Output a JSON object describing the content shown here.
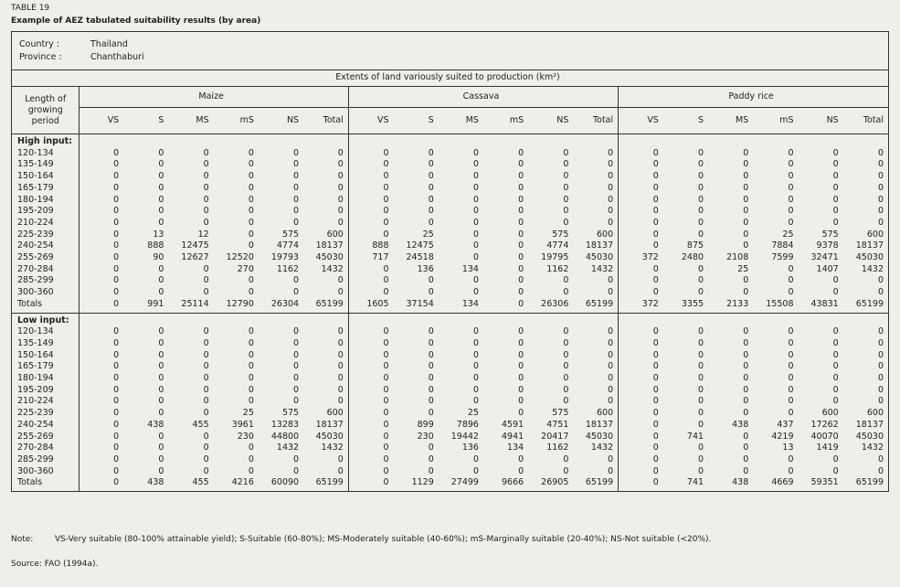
{
  "header": {
    "table_no": "TABLE 19",
    "title": "Example of AEZ tabulated suitability results (by area)"
  },
  "location": {
    "country_label": "Country :",
    "country": "Thailand",
    "province_label": "Province :",
    "province": "Chanthaburi"
  },
  "table": {
    "caption": "Extents of land variously suited to production (km²)",
    "period_header": "Length of growing period",
    "crops": [
      "Maize",
      "Cassava",
      "Paddy rice"
    ],
    "columns": [
      "VS",
      "S",
      "MS",
      "mS",
      "NS",
      "Total"
    ],
    "sections": [
      {
        "title": "High input:",
        "rows": [
          {
            "period": "120-134",
            "values": [
              0,
              0,
              0,
              0,
              0,
              0,
              0,
              0,
              0,
              0,
              0,
              0,
              0,
              0,
              0,
              0,
              0,
              0
            ]
          },
          {
            "period": "135-149",
            "values": [
              0,
              0,
              0,
              0,
              0,
              0,
              0,
              0,
              0,
              0,
              0,
              0,
              0,
              0,
              0,
              0,
              0,
              0
            ]
          },
          {
            "period": "150-164",
            "values": [
              0,
              0,
              0,
              0,
              0,
              0,
              0,
              0,
              0,
              0,
              0,
              0,
              0,
              0,
              0,
              0,
              0,
              0
            ]
          },
          {
            "period": "165-179",
            "values": [
              0,
              0,
              0,
              0,
              0,
              0,
              0,
              0,
              0,
              0,
              0,
              0,
              0,
              0,
              0,
              0,
              0,
              0
            ]
          },
          {
            "period": "180-194",
            "values": [
              0,
              0,
              0,
              0,
              0,
              0,
              0,
              0,
              0,
              0,
              0,
              0,
              0,
              0,
              0,
              0,
              0,
              0
            ]
          },
          {
            "period": "195-209",
            "values": [
              0,
              0,
              0,
              0,
              0,
              0,
              0,
              0,
              0,
              0,
              0,
              0,
              0,
              0,
              0,
              0,
              0,
              0
            ]
          },
          {
            "period": "210-224",
            "values": [
              0,
              0,
              0,
              0,
              0,
              0,
              0,
              0,
              0,
              0,
              0,
              0,
              0,
              0,
              0,
              0,
              0,
              0
            ]
          },
          {
            "period": "225-239",
            "values": [
              0,
              13,
              12,
              0,
              575,
              600,
              0,
              25,
              0,
              0,
              575,
              600,
              0,
              0,
              0,
              25,
              575,
              600
            ]
          },
          {
            "period": "240-254",
            "values": [
              0,
              888,
              12475,
              0,
              4774,
              18137,
              888,
              12475,
              0,
              0,
              4774,
              18137,
              0,
              875,
              0,
              7884,
              9378,
              18137
            ]
          },
          {
            "period": "255-269",
            "values": [
              0,
              90,
              12627,
              12520,
              19793,
              45030,
              717,
              24518,
              0,
              0,
              19795,
              45030,
              372,
              2480,
              2108,
              7599,
              32471,
              45030
            ]
          },
          {
            "period": "270-284",
            "values": [
              0,
              0,
              0,
              270,
              1162,
              1432,
              0,
              136,
              134,
              0,
              1162,
              1432,
              0,
              0,
              25,
              0,
              1407,
              1432
            ]
          },
          {
            "period": "285-299",
            "values": [
              0,
              0,
              0,
              0,
              0,
              0,
              0,
              0,
              0,
              0,
              0,
              0,
              0,
              0,
              0,
              0,
              0,
              0
            ]
          },
          {
            "period": "300-360",
            "values": [
              0,
              0,
              0,
              0,
              0,
              0,
              0,
              0,
              0,
              0,
              0,
              0,
              0,
              0,
              0,
              0,
              0,
              0
            ]
          }
        ],
        "totals": {
          "label": "Totals",
          "values": [
            0,
            991,
            25114,
            12790,
            26304,
            65199,
            1605,
            37154,
            134,
            0,
            26306,
            65199,
            372,
            3355,
            2133,
            15508,
            43831,
            65199
          ]
        }
      },
      {
        "title": "Low input:",
        "rows": [
          {
            "period": "120-134",
            "values": [
              0,
              0,
              0,
              0,
              0,
              0,
              0,
              0,
              0,
              0,
              0,
              0,
              0,
              0,
              0,
              0,
              0,
              0
            ]
          },
          {
            "period": "135-149",
            "values": [
              0,
              0,
              0,
              0,
              0,
              0,
              0,
              0,
              0,
              0,
              0,
              0,
              0,
              0,
              0,
              0,
              0,
              0
            ]
          },
          {
            "period": "150-164",
            "values": [
              0,
              0,
              0,
              0,
              0,
              0,
              0,
              0,
              0,
              0,
              0,
              0,
              0,
              0,
              0,
              0,
              0,
              0
            ]
          },
          {
            "period": "165-179",
            "values": [
              0,
              0,
              0,
              0,
              0,
              0,
              0,
              0,
              0,
              0,
              0,
              0,
              0,
              0,
              0,
              0,
              0,
              0
            ]
          },
          {
            "period": "180-194",
            "values": [
              0,
              0,
              0,
              0,
              0,
              0,
              0,
              0,
              0,
              0,
              0,
              0,
              0,
              0,
              0,
              0,
              0,
              0
            ]
          },
          {
            "period": "195-209",
            "values": [
              0,
              0,
              0,
              0,
              0,
              0,
              0,
              0,
              0,
              0,
              0,
              0,
              0,
              0,
              0,
              0,
              0,
              0
            ]
          },
          {
            "period": "210-224",
            "values": [
              0,
              0,
              0,
              0,
              0,
              0,
              0,
              0,
              0,
              0,
              0,
              0,
              0,
              0,
              0,
              0,
              0,
              0
            ]
          },
          {
            "period": "225-239",
            "values": [
              0,
              0,
              0,
              25,
              575,
              600,
              0,
              0,
              25,
              0,
              575,
              600,
              0,
              0,
              0,
              0,
              600,
              600
            ]
          },
          {
            "period": "240-254",
            "values": [
              0,
              438,
              455,
              3961,
              13283,
              18137,
              0,
              899,
              7896,
              4591,
              4751,
              18137,
              0,
              0,
              438,
              437,
              17262,
              18137
            ]
          },
          {
            "period": "255-269",
            "values": [
              0,
              0,
              0,
              230,
              44800,
              45030,
              0,
              230,
              19442,
              4941,
              20417,
              45030,
              0,
              741,
              0,
              4219,
              40070,
              45030
            ]
          },
          {
            "period": "270-284",
            "values": [
              0,
              0,
              0,
              0,
              1432,
              1432,
              0,
              0,
              136,
              134,
              1162,
              1432,
              0,
              0,
              0,
              13,
              1419,
              1432
            ]
          },
          {
            "period": "285-299",
            "values": [
              0,
              0,
              0,
              0,
              0,
              0,
              0,
              0,
              0,
              0,
              0,
              0,
              0,
              0,
              0,
              0,
              0,
              0
            ]
          },
          {
            "period": "300-360",
            "values": [
              0,
              0,
              0,
              0,
              0,
              0,
              0,
              0,
              0,
              0,
              0,
              0,
              0,
              0,
              0,
              0,
              0,
              0
            ]
          }
        ],
        "totals": {
          "label": "Totals",
          "values": [
            0,
            438,
            455,
            4216,
            60090,
            65199,
            0,
            1129,
            27499,
            9666,
            26905,
            65199,
            0,
            741,
            438,
            4669,
            59351,
            65199
          ]
        }
      }
    ]
  },
  "notes": {
    "note_label": "Note:",
    "note": "VS-Very suitable (80-100% attainable yield); S-Suitable (60-80%); MS-Moderately suitable (40-60%); mS-Marginally suitable (20-40%); NS-Not suitable (<20%).",
    "source": "Source: FAO (1994a)."
  }
}
